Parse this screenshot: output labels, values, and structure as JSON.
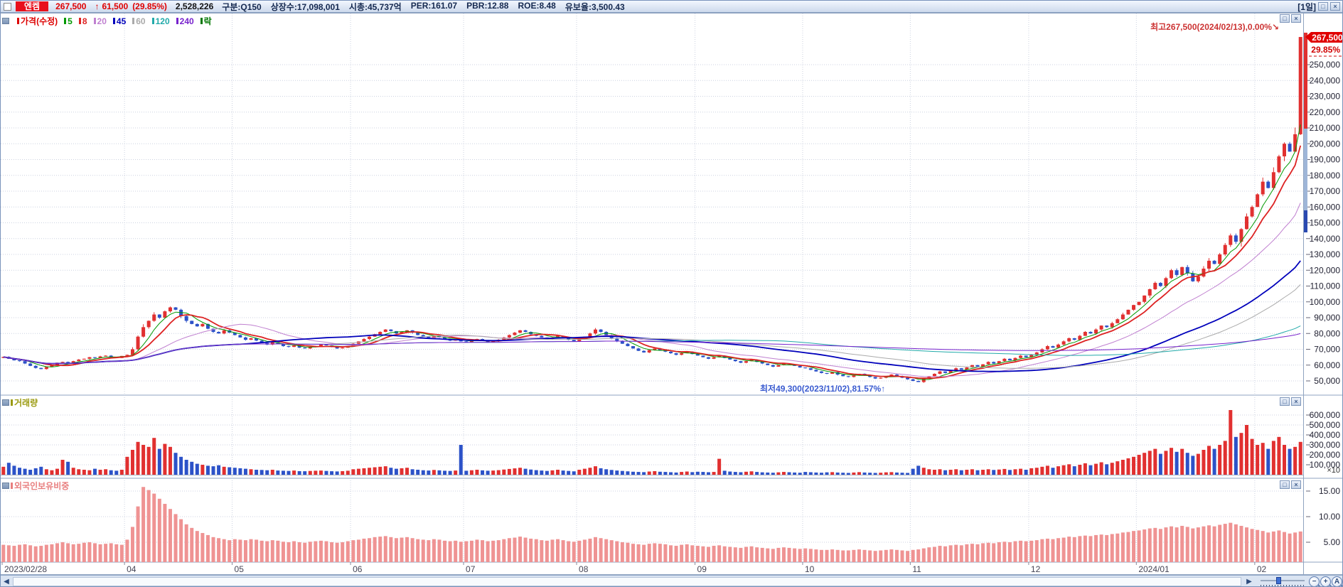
{
  "header": {
    "stock_name": "엔켐",
    "price": "267,500",
    "change_arrow": "↑",
    "change": "61,500",
    "change_pct": "(29.85%)",
    "volume": "2,528,226",
    "fields": [
      "구분:Q150",
      "상장수:17,098,001",
      "시총:45,737억",
      "PER:161.07",
      "PBR:12.88",
      "ROE:8.48",
      "유보율:3,500.43"
    ],
    "timeframe": "[1일]"
  },
  "icons": {
    "restore": "□",
    "close": "×",
    "left_arrow": "◀",
    "right_arrow": "▶",
    "zoom_out": "−",
    "zoom_in": "+",
    "zoom_reset": "A"
  },
  "legend": {
    "items": [
      {
        "label": "가격(수정)",
        "color": "#dd0000"
      },
      {
        "label": "5",
        "color": "#009900"
      },
      {
        "label": "8",
        "color": "#dd2222"
      },
      {
        "label": "20",
        "color": "#c080d0"
      },
      {
        "label": "45",
        "color": "#0000bb"
      },
      {
        "label": "60",
        "color": "#aaaaaa"
      },
      {
        "label": "120",
        "color": "#22aaaa"
      },
      {
        "label": "240",
        "color": "#7722cc"
      },
      {
        "label": "락",
        "color": "#007700"
      }
    ]
  },
  "annotations": {
    "high": {
      "text": "최고267,500(2024/02/13),0.00%",
      "arrow": "↘",
      "color": "#cc3333"
    },
    "low": {
      "text": "최저49,300(2023/11/02),81.57%",
      "arrow": "↑",
      "color": "#3a5bd0"
    }
  },
  "price_axis": {
    "tag": "267,500",
    "tag_pct": "29.85%",
    "ticks": [
      250000,
      240000,
      230000,
      220000,
      210000,
      200000,
      190000,
      180000,
      170000,
      160000,
      150000,
      140000,
      130000,
      120000,
      110000,
      100000,
      90000,
      80000,
      70000,
      60000,
      50000
    ]
  },
  "volume_pane": {
    "title": "거래량"
  },
  "volume_axis": {
    "ticks": [
      600000,
      500000,
      400000,
      300000,
      200000,
      100000
    ],
    "unit": "×10"
  },
  "foreign_pane": {
    "title": "외국인보유비중"
  },
  "foreign_axis": {
    "ticks": [
      15,
      10,
      5
    ]
  },
  "chart_data": {
    "type": "candlestick",
    "title": "엔켐 일봉 (가격/거래량/외국인보유비중)",
    "date_range": [
      "2023/02/28",
      "2024/02/13"
    ],
    "x_labels": [
      {
        "text": "2023/02/28",
        "index": 0
      },
      {
        "text": "04",
        "index": 23
      },
      {
        "text": "05",
        "index": 43
      },
      {
        "text": "06",
        "index": 65
      },
      {
        "text": "07",
        "index": 86
      },
      {
        "text": "08",
        "index": 107
      },
      {
        "text": "09",
        "index": 129
      },
      {
        "text": "10",
        "index": 149
      },
      {
        "text": "11",
        "index": 169
      },
      {
        "text": "12",
        "index": 191
      },
      {
        "text": "2024/01",
        "index": 211
      },
      {
        "text": "02",
        "index": 233
      }
    ],
    "price": {
      "name": "가격(수정)",
      "unit": "KRW",
      "ylim": [
        50000,
        267500
      ],
      "up_color": "#e13030",
      "down_color": "#2c52c8",
      "high_point": {
        "value": 267500,
        "date": "2024/02/13"
      },
      "low_point": {
        "value": 49300,
        "date": "2023/11/02"
      },
      "moving_averages": [
        {
          "window": 5,
          "color": "#009900"
        },
        {
          "window": 8,
          "color": "#dd2222"
        },
        {
          "window": 20,
          "color": "#c080d0"
        },
        {
          "window": 45,
          "color": "#0000bb"
        },
        {
          "window": 60,
          "color": "#aaaaaa"
        },
        {
          "window": 120,
          "color": "#22aaaa"
        },
        {
          "window": 240,
          "color": "#7722cc"
        }
      ],
      "closes": [
        65200,
        64000,
        63000,
        62500,
        61000,
        59500,
        58200,
        57500,
        58800,
        60000,
        61500,
        62000,
        61000,
        62500,
        63500,
        64000,
        65000,
        64500,
        65500,
        66000,
        65000,
        64500,
        65800,
        66500,
        70000,
        78000,
        84000,
        88000,
        92000,
        90000,
        94000,
        96500,
        95000,
        91000,
        88000,
        86000,
        84500,
        86000,
        83000,
        81000,
        80000,
        82000,
        80500,
        79000,
        77500,
        76000,
        77000,
        75500,
        74000,
        73000,
        74500,
        73500,
        72000,
        71500,
        72500,
        71000,
        70500,
        71500,
        72000,
        73000,
        72500,
        71500,
        70500,
        71000,
        72000,
        73500,
        75000,
        76500,
        78000,
        79500,
        81000,
        82500,
        81500,
        80000,
        81000,
        82000,
        80500,
        79000,
        78000,
        77000,
        78500,
        77500,
        76500,
        75500,
        76000,
        75000,
        74500,
        75500,
        76500,
        75500,
        74500,
        75000,
        76000,
        77500,
        79000,
        80500,
        82000,
        81000,
        79500,
        78500,
        77500,
        76500,
        77500,
        78500,
        77000,
        76000,
        75000,
        76500,
        78000,
        80000,
        82500,
        81000,
        79000,
        77000,
        75000,
        73500,
        72000,
        70500,
        69000,
        68000,
        69500,
        70500,
        69500,
        68500,
        67500,
        66500,
        67500,
        68500,
        67000,
        66000,
        65000,
        64000,
        65000,
        66000,
        64500,
        63500,
        62500,
        61500,
        62500,
        63500,
        62000,
        61000,
        60000,
        59000,
        60000,
        61000,
        60500,
        59500,
        58500,
        58000,
        57000,
        56000,
        55000,
        54500,
        55500,
        54000,
        53000,
        52500,
        53500,
        54500,
        53500,
        52500,
        51500,
        52000,
        53000,
        54000,
        53000,
        52000,
        51000,
        50000,
        49300,
        51500,
        53000,
        54500,
        56000,
        55000,
        56500,
        58000,
        57000,
        58500,
        60000,
        59000,
        60500,
        62000,
        61000,
        62500,
        64000,
        63000,
        64500,
        66000,
        65000,
        66500,
        68000,
        70000,
        72000,
        71000,
        73000,
        75000,
        77000,
        76000,
        78500,
        81000,
        80000,
        82500,
        85000,
        84000,
        86500,
        89000,
        92000,
        95000,
        98000,
        100000,
        104000,
        108000,
        112000,
        110000,
        115000,
        120000,
        117000,
        122000,
        118000,
        113000,
        116000,
        121000,
        126000,
        124000,
        130000,
        136000,
        142000,
        138000,
        146000,
        154000,
        160000,
        168000,
        176000,
        172000,
        182000,
        192000,
        200000,
        195000,
        206000,
        267500
      ]
    },
    "volume": {
      "name": "거래량",
      "unit_multiplier": "×10",
      "ylim": [
        0,
        650000
      ],
      "values": [
        80000,
        120000,
        90000,
        70000,
        60000,
        50000,
        65000,
        80000,
        55000,
        45000,
        60000,
        150000,
        130000,
        70000,
        55000,
        50000,
        45000,
        60000,
        50000,
        55000,
        45000,
        40000,
        50000,
        180000,
        250000,
        330000,
        300000,
        280000,
        370000,
        260000,
        310000,
        280000,
        220000,
        180000,
        150000,
        130000,
        110000,
        100000,
        90000,
        85000,
        95000,
        80000,
        75000,
        70000,
        65000,
        60000,
        55000,
        50000,
        48000,
        45000,
        50000,
        42000,
        40000,
        38000,
        42000,
        36000,
        35000,
        38000,
        40000,
        42000,
        38000,
        35000,
        33000,
        36000,
        40000,
        55000,
        60000,
        65000,
        70000,
        75000,
        80000,
        85000,
        70000,
        60000,
        65000,
        70000,
        55000,
        50000,
        45000,
        42000,
        48000,
        44000,
        40000,
        38000,
        42000,
        300000,
        40000,
        45000,
        50000,
        44000,
        40000,
        42000,
        46000,
        52000,
        58000,
        64000,
        70000,
        60000,
        52000,
        46000,
        42000,
        38000,
        44000,
        50000,
        42000,
        38000,
        34000,
        50000,
        60000,
        70000,
        85000,
        65000,
        55000,
        48000,
        42000,
        38000,
        34000,
        30000,
        28000,
        26000,
        32000,
        36000,
        30000,
        28000,
        25000,
        22000,
        28000,
        32000,
        26000,
        30000,
        28000,
        25000,
        28000,
        160000,
        40000,
        32000,
        28000,
        25000,
        30000,
        34000,
        28000,
        24000,
        22000,
        20000,
        24000,
        28000,
        25000,
        22000,
        20000,
        28000,
        25000,
        22000,
        20000,
        24000,
        26000,
        22000,
        20000,
        18000,
        22000,
        26000,
        22000,
        20000,
        18000,
        20000,
        24000,
        26000,
        22000,
        20000,
        18000,
        60000,
        90000,
        70000,
        55000,
        50000,
        55000,
        45000,
        50000,
        55000,
        45000,
        50000,
        55000,
        45000,
        50000,
        55000,
        48000,
        52000,
        58000,
        48000,
        55000,
        60000,
        50000,
        65000,
        70000,
        80000,
        90000,
        70000,
        85000,
        95000,
        105000,
        85000,
        100000,
        115000,
        95000,
        110000,
        125000,
        105000,
        120000,
        135000,
        150000,
        165000,
        180000,
        200000,
        220000,
        240000,
        260000,
        210000,
        240000,
        270000,
        230000,
        260000,
        220000,
        190000,
        210000,
        250000,
        290000,
        260000,
        300000,
        340000,
        650000,
        380000,
        420000,
        500000,
        360000,
        300000,
        320000,
        260000,
        340000,
        380000,
        300000,
        260000,
        280000,
        330000
      ]
    },
    "foreign_ratio": {
      "name": "외국인보유비중",
      "unit": "%",
      "ylim": [
        0,
        16
      ],
      "bar_color": "#ef9393",
      "values": [
        4.5,
        4.4,
        4.3,
        4.5,
        4.6,
        4.4,
        4.2,
        4.3,
        4.5,
        4.6,
        4.8,
        5.0,
        4.8,
        4.6,
        4.7,
        4.9,
        5.0,
        4.8,
        4.6,
        4.7,
        4.8,
        4.6,
        4.5,
        5.5,
        8.0,
        12.0,
        15.8,
        15.2,
        14.5,
        13.5,
        12.5,
        11.5,
        10.5,
        9.5,
        8.5,
        7.8,
        7.2,
        6.8,
        6.4,
        6.0,
        5.8,
        5.6,
        5.4,
        5.6,
        5.5,
        5.4,
        5.6,
        5.5,
        5.3,
        5.2,
        5.4,
        5.3,
        5.1,
        5.0,
        5.2,
        5.0,
        4.9,
        5.1,
        5.2,
        5.3,
        5.2,
        5.0,
        4.9,
        5.0,
        5.2,
        5.4,
        5.5,
        5.7,
        5.8,
        6.0,
        6.1,
        6.2,
        6.0,
        5.8,
        5.9,
        6.0,
        5.8,
        5.6,
        5.5,
        5.4,
        5.6,
        5.5,
        5.3,
        5.2,
        5.3,
        5.1,
        5.2,
        5.3,
        5.5,
        5.4,
        5.2,
        5.3,
        5.4,
        5.6,
        5.8,
        5.9,
        6.1,
        5.9,
        5.7,
        5.6,
        5.4,
        5.3,
        5.5,
        5.6,
        5.4,
        5.2,
        5.1,
        5.3,
        5.5,
        5.7,
        6.0,
        5.8,
        5.6,
        5.4,
        5.2,
        5.0,
        4.9,
        4.7,
        4.6,
        4.5,
        4.7,
        4.8,
        4.7,
        4.6,
        4.4,
        4.3,
        4.5,
        4.6,
        4.4,
        4.3,
        4.2,
        4.1,
        4.3,
        4.4,
        4.2,
        4.1,
        4.0,
        3.9,
        4.1,
        4.2,
        4.0,
        3.9,
        3.8,
        3.7,
        3.9,
        4.0,
        3.9,
        3.8,
        3.7,
        3.8,
        3.7,
        3.6,
        3.5,
        3.5,
        3.6,
        3.5,
        3.4,
        3.4,
        3.5,
        3.6,
        3.5,
        3.4,
        3.3,
        3.4,
        3.5,
        3.6,
        3.5,
        3.4,
        3.3,
        3.5,
        3.6,
        3.8,
        4.0,
        4.1,
        4.3,
        4.2,
        4.4,
        4.5,
        4.4,
        4.6,
        4.7,
        4.6,
        4.8,
        4.9,
        4.8,
        5.0,
        5.1,
        5.0,
        5.2,
        5.3,
        5.2,
        5.3,
        5.4,
        5.6,
        5.7,
        5.6,
        5.8,
        5.9,
        6.1,
        6.0,
        6.2,
        6.3,
        6.2,
        6.4,
        6.5,
        6.4,
        6.6,
        6.7,
        6.9,
        7.0,
        7.2,
        7.3,
        7.5,
        7.7,
        7.8,
        7.6,
        7.9,
        8.1,
        7.9,
        8.2,
        8.0,
        7.7,
        7.9,
        8.1,
        8.3,
        8.1,
        8.4,
        8.6,
        8.8,
        8.5,
        8.2,
        7.9,
        7.6,
        7.4,
        7.2,
        6.9,
        7.1,
        7.3,
        7.0,
        6.7,
        6.9,
        7.1
      ]
    }
  }
}
